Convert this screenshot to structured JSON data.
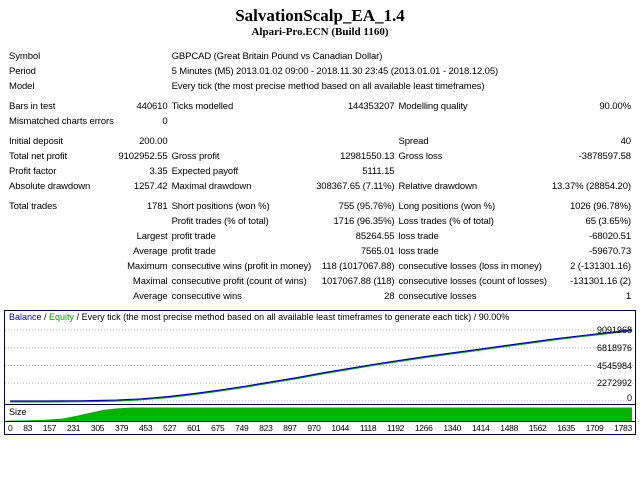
{
  "header": {
    "title": "SalvationScalp_EA_1.4",
    "subtitle": "Alpari-Pro.ECN (Build 1160)"
  },
  "report_table": {
    "rows": [
      {
        "type": "wide",
        "label": "Symbol",
        "value": "GBPCAD (Great Britain Pound vs Canadian Dollar)"
      },
      {
        "type": "wide",
        "label": "Period",
        "value": "5 Minutes (M5) 2013.01.02 09:00 - 2018.11.30 23:45 (2013.01.01 - 2018.12.05)"
      },
      {
        "type": "wide",
        "label": "Model",
        "value": "Every tick (the most precise method based on all available least timeframes)"
      },
      {
        "type": "gap"
      },
      {
        "type": "cells",
        "cells": [
          "Bars in test",
          "440610",
          "Ticks modelled",
          "144353207",
          "Modelling quality",
          "90.00%"
        ]
      },
      {
        "type": "cells",
        "cells": [
          "Mismatched charts errors",
          "0",
          "",
          "",
          "",
          ""
        ]
      },
      {
        "type": "gap"
      },
      {
        "type": "cells",
        "cells": [
          "Initial deposit",
          "200.00",
          "",
          "",
          "Spread",
          "40"
        ]
      },
      {
        "type": "cells",
        "cells": [
          "Total net profit",
          "9102952.55",
          "Gross profit",
          "12981550.13",
          "Gross loss",
          "-3878597.58"
        ]
      },
      {
        "type": "cells",
        "cells": [
          "Profit factor",
          "3.35",
          "Expected payoff",
          "5111.15",
          "",
          ""
        ]
      },
      {
        "type": "cells",
        "cells": [
          "Absolute drawdown",
          "1257.42",
          "Maximal drawdown",
          "308367.65 (7.11%)",
          "Relative drawdown",
          "13.37% (28854.20)"
        ]
      },
      {
        "type": "gap"
      },
      {
        "type": "cells",
        "cells": [
          "Total trades",
          "1781",
          "Short positions (won %)",
          "755 (95.76%)",
          "Long positions (won %)",
          "1026 (96.78%)"
        ]
      },
      {
        "type": "cells",
        "cells": [
          "",
          "",
          "Profit trades (% of total)",
          "1716 (96.35%)",
          "Loss trades (% of total)",
          "65 (3.65%)"
        ]
      },
      {
        "type": "cells",
        "cells": [
          "",
          "Largest",
          "profit trade",
          "85264.55",
          "loss trade",
          "-68020.51"
        ]
      },
      {
        "type": "cells",
        "cells": [
          "",
          "Average",
          "profit trade",
          "7565.01",
          "loss trade",
          "-59670.73"
        ]
      },
      {
        "type": "cells",
        "cells": [
          "",
          "Maximum",
          "consecutive wins (profit in money)",
          "118 (1017067.88)",
          "consecutive losses (loss in money)",
          "2 (-131301.16)"
        ]
      },
      {
        "type": "cells",
        "cells": [
          "",
          "Maximal",
          "consecutive profit (count of wins)",
          "1017067.88 (118)",
          "consecutive losses (count of losses)",
          "-131301.16 (2)"
        ]
      },
      {
        "type": "cells",
        "cells": [
          "",
          "Average",
          "consecutive wins",
          "28",
          "consecutive losses",
          "1"
        ]
      }
    ]
  },
  "chart_data": {
    "type": "line",
    "legend": {
      "balance": "Balance",
      "sep": " / ",
      "equity": "Equity",
      "rest": " / Every tick (the most precise method based on all available least timeframes to generate each tick) / 90.00%"
    },
    "size_label": "Size",
    "xlim": [
      0,
      1783
    ],
    "ylim": [
      0,
      9700000
    ],
    "y_ticks": [
      9091968,
      6818976,
      4545984,
      2272992,
      0
    ],
    "x_ticks": [
      0,
      83,
      157,
      231,
      305,
      379,
      453,
      527,
      601,
      675,
      749,
      823,
      897,
      970,
      1044,
      1118,
      1192,
      1266,
      1340,
      1414,
      1488,
      1562,
      1635,
      1709,
      1783
    ],
    "series": {
      "balance": {
        "name": "Balance",
        "color": "#0000cc",
        "x": [
          0,
          50,
          100,
          150,
          200,
          250,
          305,
          379,
          453,
          527,
          601,
          675,
          749,
          823,
          897,
          970,
          1044,
          1118,
          1192,
          1266,
          1340,
          1414,
          1488,
          1562,
          1635,
          1709,
          1783
        ],
        "y": [
          200,
          800,
          3000,
          9000,
          25000,
          60000,
          120000,
          280000,
          560000,
          950000,
          1400000,
          1900000,
          2450000,
          3000000,
          3600000,
          4150000,
          4700000,
          5200000,
          5700000,
          6150000,
          6600000,
          7050000,
          7500000,
          7950000,
          8350000,
          8720000,
          9102952.55
        ]
      },
      "equity": {
        "name": "Equity",
        "color": "#00a000",
        "overlaps_balance": true
      }
    },
    "size_series": {
      "color": "#00b400",
      "x": [
        0,
        40,
        100,
        150,
        190,
        230,
        270,
        310,
        350,
        1783
      ],
      "fraction": [
        0,
        0.01,
        0.05,
        0.15,
        0.35,
        0.6,
        0.82,
        0.95,
        1,
        1
      ]
    },
    "colors": {
      "frame": "#000040",
      "grid": "#bcbcbc"
    }
  }
}
